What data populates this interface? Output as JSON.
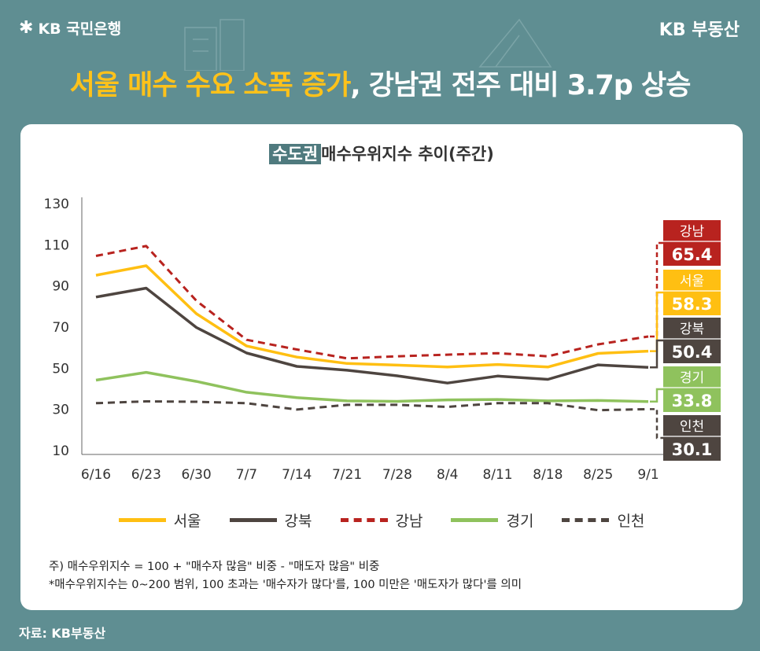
{
  "brand_left": "KB 국민은행",
  "brand_left_icon": "kb-star-icon",
  "brand_right": "KB 부동산",
  "headline": {
    "highlight": "서울 매수 수요 소폭 증가",
    "rest": ", 강남권 전주 대비 3.7p 상승"
  },
  "notes": [
    "주) 매수우위지수 = 100 + \"매수자 많음\" 비중 - \"매도자 많음\" 비중",
    "*매수우위지수는 0~200 범위, 100 초과는 '매수자가 많다'를, 100 미만은 '매도자가 많다'를 의미"
  ],
  "source": "자료: KB부동산",
  "chart_data": {
    "type": "line",
    "title_tag": "수도권",
    "title": "매수우위지수 추이(주간)",
    "categories": [
      "6/16",
      "6/23",
      "6/30",
      "7/7",
      "7/14",
      "7/21",
      "7/28",
      "8/4",
      "8/11",
      "8/18",
      "8/25",
      "9/1"
    ],
    "yticks": [
      10,
      30,
      50,
      70,
      90,
      110,
      130
    ],
    "ylim": [
      10,
      130
    ],
    "grid": false,
    "legend_position": "bottom",
    "series": [
      {
        "name": "서울",
        "color": "#ffbf12",
        "dash": false,
        "values": [
          95.2,
          99.8,
          76.5,
          60.8,
          55.4,
          52.3,
          51.5,
          50.6,
          51.8,
          50.6,
          57.2,
          58.3
        ],
        "end_label": "58.3"
      },
      {
        "name": "강북",
        "color": "#4e4540",
        "dash": false,
        "values": [
          84.6,
          88.9,
          69.8,
          57.4,
          50.9,
          49.0,
          46.3,
          42.8,
          46.2,
          44.6,
          51.6,
          50.4
        ],
        "end_label": "50.4"
      },
      {
        "name": "강남",
        "color": "#b8231f",
        "dash": true,
        "values": [
          104.6,
          109.4,
          82.8,
          63.8,
          59.1,
          54.8,
          55.8,
          56.6,
          57.3,
          55.8,
          61.6,
          65.4
        ],
        "end_label": "65.4"
      },
      {
        "name": "경기",
        "color": "#8fc25d",
        "dash": false,
        "values": [
          44.2,
          48.0,
          43.6,
          38.3,
          35.7,
          34.1,
          33.9,
          34.6,
          34.8,
          34.1,
          34.3,
          33.8
        ],
        "end_label": "33.8"
      },
      {
        "name": "인천",
        "color": "#4e4540",
        "dash": true,
        "values": [
          33.0,
          33.9,
          33.7,
          33.0,
          29.9,
          32.2,
          32.2,
          31.2,
          33.0,
          33.0,
          29.6,
          30.1
        ],
        "end_label": "30.1"
      }
    ],
    "end_label_colors": {
      "강남": "#b8231f",
      "서울": "#ffbf12",
      "강북": "#4e4540",
      "경기": "#8fc25d",
      "인천": "#4e4540"
    }
  }
}
